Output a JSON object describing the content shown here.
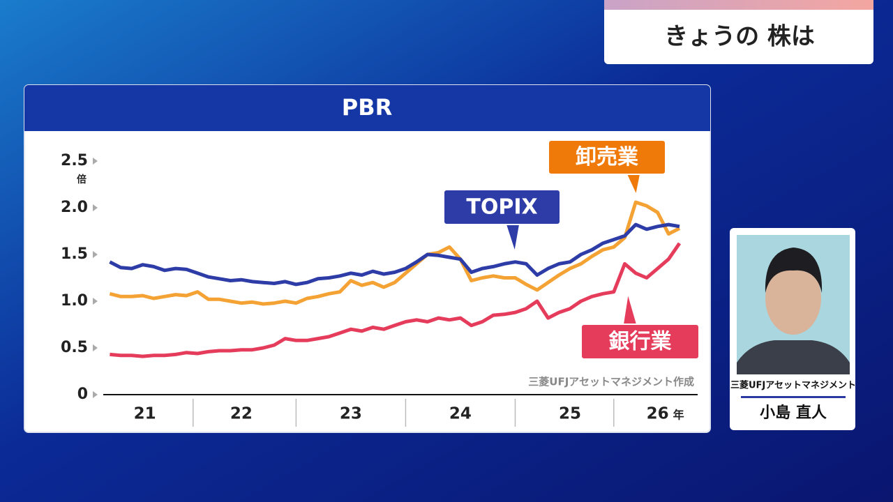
{
  "header": {
    "title": "きょうの 株は"
  },
  "chart_data": {
    "type": "line",
    "title": "PBR",
    "y_unit": "倍",
    "x_unit": "年",
    "source": "三菱UFJアセットマネジメント作成",
    "x": [
      21.3,
      21.4,
      21.5,
      21.6,
      21.7,
      21.8,
      21.9,
      22.0,
      22.1,
      22.2,
      22.3,
      22.4,
      22.5,
      22.6,
      22.7,
      22.8,
      22.9,
      23.0,
      23.1,
      23.2,
      23.3,
      23.4,
      23.5,
      23.6,
      23.7,
      23.8,
      23.9,
      24.0,
      24.1,
      24.2,
      24.3,
      24.4,
      24.5,
      24.6,
      24.7,
      24.8,
      24.9,
      25.0,
      25.1,
      25.2,
      25.3,
      25.4,
      25.5,
      25.6,
      25.7,
      25.8,
      25.9,
      26.0,
      26.1,
      26.2,
      26.3,
      26.4,
      26.5
    ],
    "series": [
      {
        "name": "TOPIX",
        "color": "#2d3ca6",
        "values": [
          1.42,
          1.36,
          1.35,
          1.39,
          1.37,
          1.33,
          1.35,
          1.34,
          1.3,
          1.26,
          1.24,
          1.22,
          1.23,
          1.21,
          1.2,
          1.19,
          1.21,
          1.18,
          1.2,
          1.24,
          1.25,
          1.27,
          1.3,
          1.28,
          1.32,
          1.29,
          1.31,
          1.35,
          1.42,
          1.5,
          1.49,
          1.47,
          1.45,
          1.31,
          1.35,
          1.37,
          1.4,
          1.42,
          1.4,
          1.28,
          1.35,
          1.4,
          1.42,
          1.5,
          1.55,
          1.62,
          1.66,
          1.7,
          1.82,
          1.77,
          1.8,
          1.82,
          1.8
        ]
      },
      {
        "name": "卸売業",
        "color": "#f4a233",
        "values": [
          1.08,
          1.05,
          1.05,
          1.06,
          1.03,
          1.05,
          1.07,
          1.06,
          1.1,
          1.02,
          1.02,
          1.0,
          0.98,
          0.99,
          0.97,
          0.98,
          1.0,
          0.98,
          1.03,
          1.05,
          1.08,
          1.1,
          1.22,
          1.17,
          1.2,
          1.15,
          1.2,
          1.3,
          1.4,
          1.5,
          1.52,
          1.58,
          1.45,
          1.22,
          1.25,
          1.27,
          1.25,
          1.25,
          1.18,
          1.12,
          1.2,
          1.28,
          1.35,
          1.4,
          1.48,
          1.55,
          1.58,
          1.68,
          2.06,
          2.02,
          1.95,
          1.72,
          1.78
        ]
      },
      {
        "name": "銀行業",
        "color": "#e63c5c",
        "values": [
          0.43,
          0.42,
          0.42,
          0.41,
          0.42,
          0.42,
          0.43,
          0.45,
          0.44,
          0.46,
          0.47,
          0.47,
          0.48,
          0.48,
          0.5,
          0.53,
          0.6,
          0.58,
          0.58,
          0.6,
          0.62,
          0.66,
          0.7,
          0.68,
          0.72,
          0.7,
          0.74,
          0.78,
          0.8,
          0.78,
          0.82,
          0.8,
          0.82,
          0.74,
          0.78,
          0.85,
          0.86,
          0.88,
          0.92,
          1.0,
          0.82,
          0.88,
          0.92,
          1.0,
          1.05,
          1.08,
          1.1,
          1.4,
          1.3,
          1.25,
          1.35,
          1.45,
          1.62
        ]
      }
    ],
    "xlim": [
      21.24,
      26.57
    ],
    "xticks": [
      {
        "value": 21.62,
        "label": "21"
      },
      {
        "value": 22.5,
        "label": "22"
      },
      {
        "value": 23.5,
        "label": "23"
      },
      {
        "value": 24.5,
        "label": "24"
      },
      {
        "value": 25.5,
        "label": "25"
      },
      {
        "value": 26.3,
        "label": "26"
      }
    ],
    "ylim": [
      0,
      2.5
    ],
    "yticks": [
      0,
      0.5,
      {
        "value": 1,
        "label": "1.0"
      },
      1.5,
      {
        "value": 2,
        "label": "2.0"
      },
      2.5
    ],
    "grid": false
  },
  "guest": {
    "company": "三菱UFJアセットマネジメント",
    "name": "小島 直人"
  }
}
